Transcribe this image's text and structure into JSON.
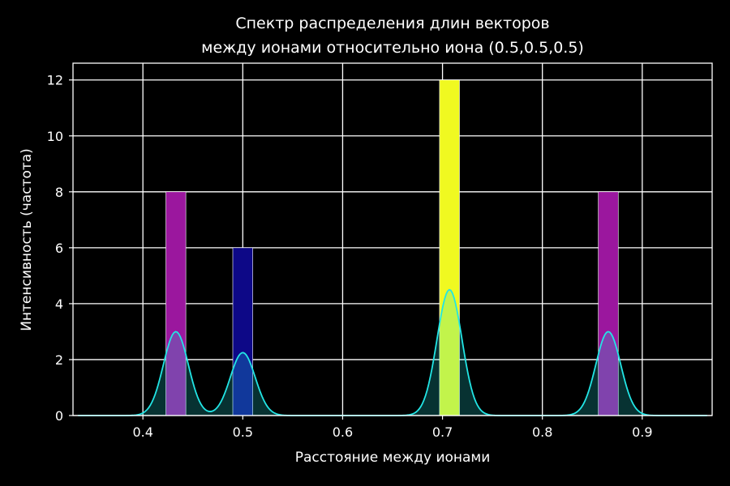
{
  "chart_data": {
    "type": "bar",
    "title": [
      "Спектр распределения длин векторов",
      "между ионами относительно иона (0.5,0.5,0.5)"
    ],
    "xlabel": "Расстояние между ионами",
    "ylabel": "Интенсивность (частота)",
    "xlim": [
      0.33,
      0.97
    ],
    "ylim": [
      0,
      12.6
    ],
    "xticks": [
      0.4,
      0.5,
      0.6,
      0.7,
      0.8,
      0.9
    ],
    "xtick_labels": [
      "0.4",
      "0.5",
      "0.6",
      "0.7",
      "0.8",
      "0.9"
    ],
    "yticks": [
      0,
      2,
      4,
      6,
      8,
      10,
      12
    ],
    "ytick_labels": [
      "0",
      "2",
      "4",
      "6",
      "8",
      "10",
      "12"
    ],
    "grid": true,
    "bars": [
      {
        "x": 0.433,
        "width": 0.02,
        "value": 8,
        "color": "#9b179e"
      },
      {
        "x": 0.5,
        "width": 0.02,
        "value": 6,
        "color": "#0d0887"
      },
      {
        "x": 0.707,
        "width": 0.02,
        "value": 12,
        "color": "#f0f921"
      },
      {
        "x": 0.866,
        "width": 0.02,
        "value": 8,
        "color": "#9b179e"
      }
    ],
    "kde": {
      "color": "#22e5e5",
      "fill": "#0a3c3c",
      "x_range": [
        0.335,
        0.965
      ],
      "peaks": [
        {
          "x": 0.433,
          "height": 3.0,
          "sigma": 0.0125
        },
        {
          "x": 0.5,
          "height": 2.25,
          "sigma": 0.0125
        },
        {
          "x": 0.707,
          "height": 4.5,
          "sigma": 0.0125
        },
        {
          "x": 0.866,
          "height": 3.0,
          "sigma": 0.0125
        }
      ]
    }
  }
}
